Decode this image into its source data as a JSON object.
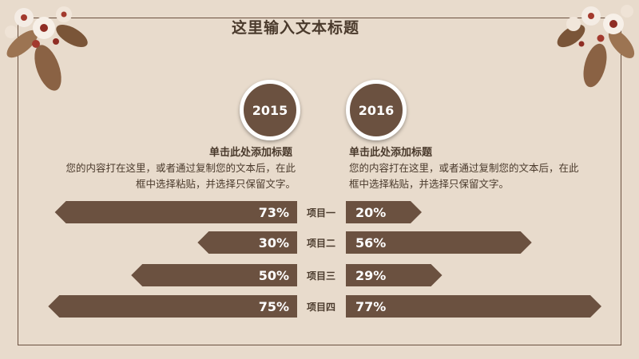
{
  "title": "这里输入文本标题",
  "left_column": {
    "year": "2015",
    "heading": "单击此处添加标题",
    "body_line1": "您的内容打在这里，或者通过复制您的文本后，在此",
    "body_line2": "框中选择粘贴，并选择只保留文字。"
  },
  "right_column": {
    "year": "2016",
    "heading": "单击此处添加标题",
    "body_line1": "您的内容打在这里，或者通过复制您的文本后，在此",
    "body_line2": "框中选择粘贴，并选择只保留文字。"
  },
  "colors": {
    "background": "#e8dbcc",
    "bar": "#6b5140",
    "text": "#4a3a2c"
  },
  "chart_data": {
    "type": "bar",
    "categories": [
      "项目一",
      "项目二",
      "项目三",
      "项目四"
    ],
    "series": [
      {
        "name": "2015",
        "values": [
          73,
          30,
          50,
          75
        ],
        "labels": [
          "73%",
          "30%",
          "50%",
          "75%"
        ]
      },
      {
        "name": "2016",
        "values": [
          20,
          56,
          29,
          77
        ],
        "labels": [
          "20%",
          "56%",
          "29%",
          "77%"
        ]
      }
    ],
    "ylim": [
      0,
      100
    ],
    "grid": false
  }
}
